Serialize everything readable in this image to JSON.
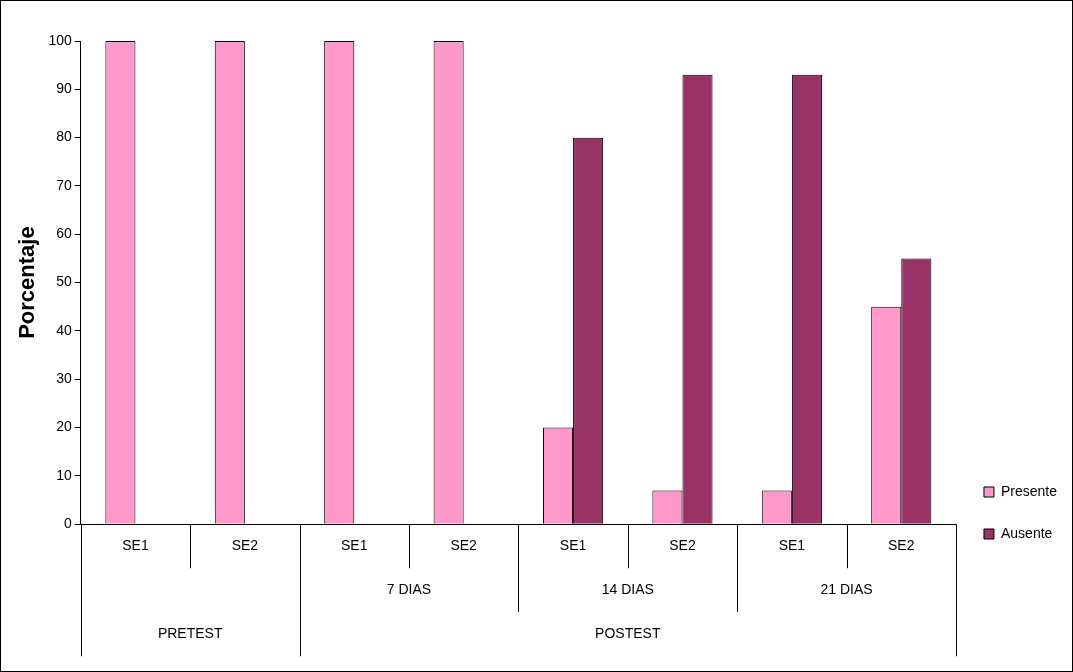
{
  "chart_data": {
    "type": "bar",
    "ylabel": "Porcentaje",
    "categories": [
      "SE1",
      "SE2",
      "SE1",
      "SE2",
      "SE1",
      "SE2",
      "SE1",
      "SE2"
    ],
    "series": [
      {
        "name": "Presente",
        "color": "#ff99cc",
        "values": [
          100,
          100,
          100,
          100,
          20,
          7,
          7,
          45
        ]
      },
      {
        "name": "Ausente",
        "color": "#993366",
        "values": [
          0,
          0,
          0,
          0,
          80,
          93,
          93,
          55
        ]
      }
    ],
    "ylim": [
      0,
      100
    ],
    "yticks": [
      0,
      10,
      20,
      30,
      40,
      50,
      60,
      70,
      80,
      90,
      100
    ],
    "grid": false,
    "legend": "bottom right",
    "annotations": [
      "7 DIAS",
      "14 DIAS",
      "21 DIAS",
      "PRETEST",
      "POSTEST"
    ]
  }
}
